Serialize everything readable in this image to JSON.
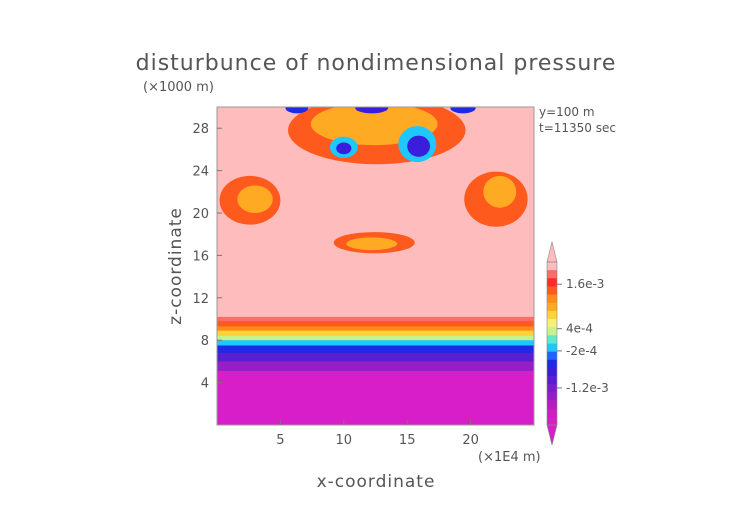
{
  "chart_data": {
    "type": "heatmap",
    "title": "disturbunce of nondimensional pressure",
    "subtitle": "(×1000 m)",
    "xlabel": "x-coordinate",
    "ylabel": "z-coordinate",
    "x_unit": "(×1E4 m)",
    "annotations": [
      "y=100 m",
      "t=11350 sec"
    ],
    "xlim": [
      0,
      25
    ],
    "ylim": [
      0,
      30
    ],
    "x_ticks": [
      5,
      10,
      15,
      20
    ],
    "y_ticks": [
      4,
      8,
      12,
      16,
      20,
      24,
      28
    ],
    "colorbar": {
      "labels": [
        "1.6e-3",
        "4e-4",
        "-2e-4",
        "-1.2e-3"
      ],
      "levels": [
        {
          "min": 0.0018,
          "max": 0.0022,
          "color": "#ffbcbc"
        },
        {
          "min": 0.0014,
          "max": 0.0018,
          "color": "#ff6a6a"
        },
        {
          "min": 0.0012,
          "max": 0.0014,
          "color": "#ff2a2a"
        },
        {
          "min": 0.001,
          "max": 0.0012,
          "color": "#ff5a1e"
        },
        {
          "min": 0.0008,
          "max": 0.001,
          "color": "#ff8c18"
        },
        {
          "min": 0.0006,
          "max": 0.0008,
          "color": "#ffaa22"
        },
        {
          "min": 0.0004,
          "max": 0.0006,
          "color": "#ffd23a"
        },
        {
          "min": 0.0002,
          "max": 0.0004,
          "color": "#f5f07a"
        },
        {
          "min": 0.0,
          "max": 0.0002,
          "color": "#c8f08c"
        },
        {
          "min": -0.0002,
          "max": 0.0,
          "color": "#5ee8c8"
        },
        {
          "min": -0.0004,
          "max": -0.0002,
          "color": "#1ec8ff"
        },
        {
          "min": -0.0006,
          "max": -0.0004,
          "color": "#1e64ff"
        },
        {
          "min": -0.0008,
          "max": -0.0006,
          "color": "#1e2ae6"
        },
        {
          "min": -0.001,
          "max": -0.0008,
          "color": "#3a1edc"
        },
        {
          "min": -0.0012,
          "max": -0.001,
          "color": "#5a1ed2"
        },
        {
          "min": -0.0014,
          "max": -0.0012,
          "color": "#7a1ecc"
        },
        {
          "min": -0.0016,
          "max": -0.0014,
          "color": "#961ec6"
        },
        {
          "min": -0.0018,
          "max": -0.0016,
          "color": "#b41ec2"
        },
        {
          "min": -0.002,
          "max": -0.0018,
          "color": "#cc1ec0"
        },
        {
          "min": -0.0022,
          "max": -0.002,
          "color": "#d81ec8"
        }
      ]
    },
    "regions": [
      {
        "name": "background",
        "value": 0.002,
        "shape": "rect",
        "x": [
          0,
          25
        ],
        "y": [
          0,
          30
        ]
      },
      {
        "name": "upper-band",
        "value": 0.0016,
        "shape": "rect",
        "x": [
          0,
          25
        ],
        "y": [
          8.7,
          10.2
        ]
      },
      {
        "name": "band-1",
        "value": 0.0011,
        "shape": "rect",
        "x": [
          0,
          25
        ],
        "y": [
          8.7,
          9.8
        ]
      },
      {
        "name": "band-2",
        "value": 0.0009,
        "shape": "rect",
        "x": [
          0,
          25
        ],
        "y": [
          8.7,
          9.3
        ]
      },
      {
        "name": "band-3",
        "value": 0.0005,
        "shape": "rect",
        "x": [
          0,
          25
        ],
        "y": [
          8.3,
          8.9
        ]
      },
      {
        "name": "band-4",
        "value": 0.0001,
        "shape": "rect",
        "x": [
          0,
          25
        ],
        "y": [
          7.9,
          8.4
        ]
      },
      {
        "name": "band-5",
        "value": -0.0003,
        "shape": "rect",
        "x": [
          0,
          25
        ],
        "y": [
          7.4,
          8.0
        ]
      },
      {
        "name": "band-6",
        "value": -0.0007,
        "shape": "rect",
        "x": [
          0,
          25
        ],
        "y": [
          6.7,
          7.5
        ]
      },
      {
        "name": "band-7",
        "value": -0.0011,
        "shape": "rect",
        "x": [
          0,
          25
        ],
        "y": [
          5.9,
          6.8
        ]
      },
      {
        "name": "band-8",
        "value": -0.0015,
        "shape": "rect",
        "x": [
          0,
          25
        ],
        "y": [
          5.0,
          6.0
        ]
      },
      {
        "name": "band-9",
        "value": -0.0021,
        "shape": "rect",
        "x": [
          0,
          25
        ],
        "y": [
          0,
          5.1
        ]
      },
      {
        "name": "left-blob",
        "value": 0.0011,
        "shape": "ellipse",
        "cx": 2.6,
        "cy": 21.2,
        "rx": 2.4,
        "ry": 2.3
      },
      {
        "name": "left-blob-core",
        "value": 0.0007,
        "shape": "ellipse",
        "cx": 3.0,
        "cy": 21.3,
        "rx": 1.4,
        "ry": 1.3
      },
      {
        "name": "right-blob",
        "value": 0.0011,
        "shape": "ellipse",
        "cx": 22.0,
        "cy": 21.3,
        "rx": 2.5,
        "ry": 2.6
      },
      {
        "name": "right-blob-core",
        "value": 0.0007,
        "shape": "ellipse",
        "cx": 22.3,
        "cy": 22.0,
        "rx": 1.3,
        "ry": 1.5
      },
      {
        "name": "mid-blob",
        "value": 0.0011,
        "shape": "ellipse",
        "cx": 12.4,
        "cy": 17.2,
        "rx": 3.2,
        "ry": 1.0
      },
      {
        "name": "mid-blob-core",
        "value": 0.0007,
        "shape": "ellipse",
        "cx": 12.2,
        "cy": 17.1,
        "rx": 2.0,
        "ry": 0.6
      },
      {
        "name": "top-arc",
        "value": 0.0011,
        "shape": "ellipse",
        "cx": 12.6,
        "cy": 27.8,
        "rx": 7.0,
        "ry": 3.2
      },
      {
        "name": "top-arc-core",
        "value": 0.0006,
        "shape": "ellipse",
        "cx": 12.4,
        "cy": 28.4,
        "rx": 5.0,
        "ry": 2.0
      },
      {
        "name": "left-low-1",
        "value": -0.0003,
        "shape": "ellipse",
        "cx": 10.0,
        "cy": 26.2,
        "rx": 1.1,
        "ry": 1.0
      },
      {
        "name": "left-low-2",
        "value": -0.0009,
        "shape": "ellipse",
        "cx": 10.0,
        "cy": 26.1,
        "rx": 0.6,
        "ry": 0.55
      },
      {
        "name": "right-low-1",
        "value": -0.0003,
        "shape": "ellipse",
        "cx": 15.8,
        "cy": 26.5,
        "rx": 1.5,
        "ry": 1.7
      },
      {
        "name": "right-low-2",
        "value": -0.0009,
        "shape": "ellipse",
        "cx": 15.9,
        "cy": 26.3,
        "rx": 0.9,
        "ry": 1.0
      },
      {
        "name": "top-low-left",
        "value": -0.0007,
        "shape": "ellipse",
        "cx": 6.3,
        "cy": 29.9,
        "rx": 0.9,
        "ry": 0.5
      },
      {
        "name": "top-low-mid",
        "value": -0.0009,
        "shape": "ellipse",
        "cx": 12.2,
        "cy": 29.9,
        "rx": 1.3,
        "ry": 0.5
      },
      {
        "name": "top-low-right",
        "value": -0.0007,
        "shape": "ellipse",
        "cx": 19.4,
        "cy": 29.9,
        "rx": 1.0,
        "ry": 0.5
      }
    ]
  }
}
